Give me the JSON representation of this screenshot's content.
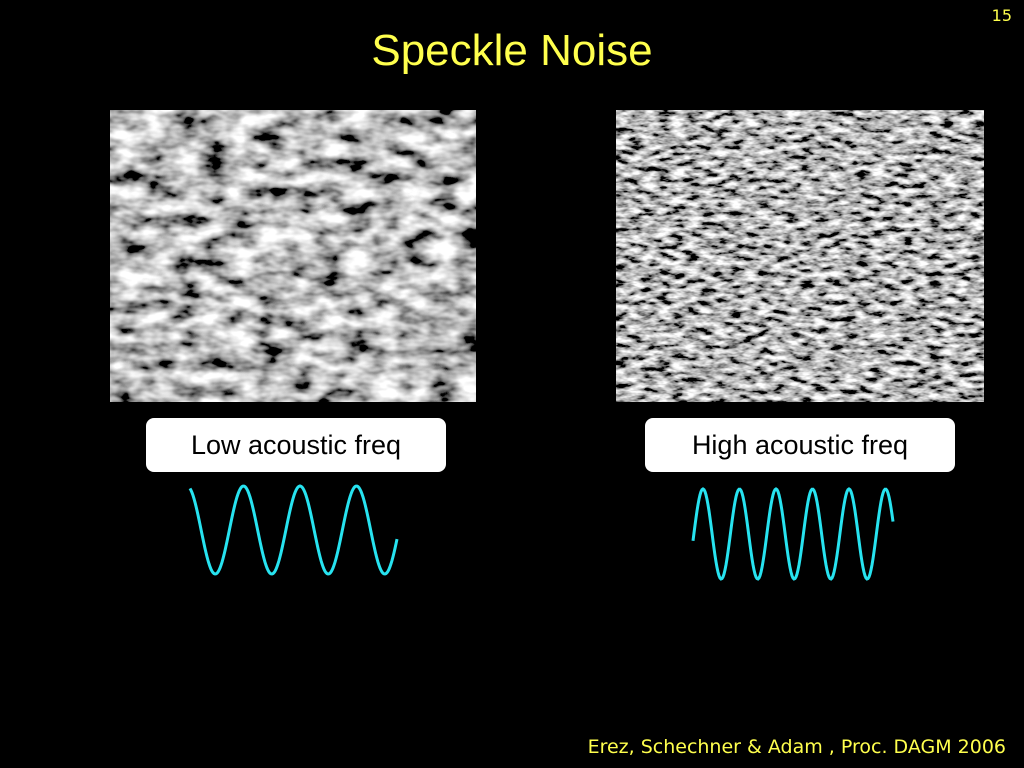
{
  "slide": {
    "page_number": "15",
    "title": "Speckle Noise",
    "panels": [
      {
        "label": "Low acoustic freq"
      },
      {
        "label": "High acoustic freq"
      }
    ],
    "citation": "Erez, Schechner & Adam , Proc. DAGM 2006"
  }
}
